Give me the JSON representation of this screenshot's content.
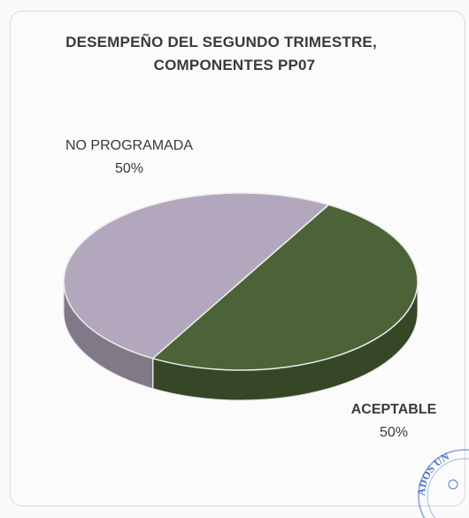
{
  "chart_data": {
    "type": "pie",
    "title": "DESEMPEÑO DEL SEGUNDO TRIMESTRE,\nCOMPONENTES PP07",
    "title_lines": [
      "DESEMPEÑO DEL SEGUNDO TRIMESTRE,",
      "COMPONENTES PP07"
    ],
    "categories": [
      "NO PROGRAMADA",
      "ACEPTABLE"
    ],
    "values": [
      50,
      50
    ],
    "value_labels": [
      "50%",
      "50%"
    ],
    "colors": [
      "#b3a7bd",
      "#4b6337"
    ],
    "style": "3d"
  },
  "stamp_text": "ADOS UN"
}
